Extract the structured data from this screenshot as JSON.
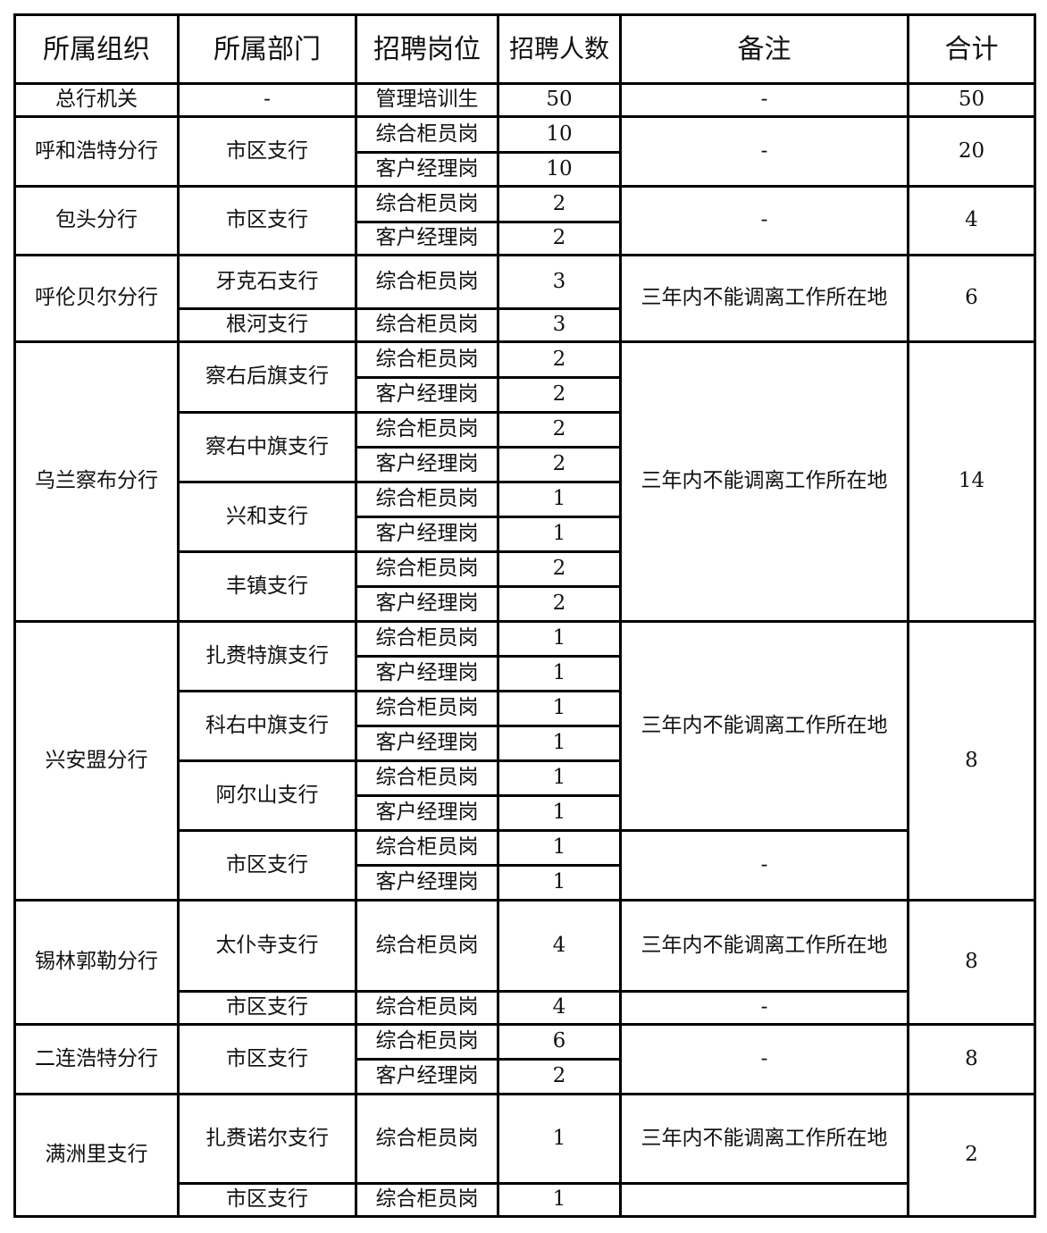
{
  "header": {
    "org": "所属组织",
    "dept": "所属部门",
    "position": "招聘岗位",
    "count": "招聘人数",
    "remark": "备注",
    "total": "合计"
  },
  "orgs": [
    {
      "name": "总行机关",
      "total": "50",
      "depts": [
        {
          "name": "-",
          "positions": [
            {
              "title": "管理培训生",
              "count": "50"
            }
          ]
        }
      ],
      "remarks": [
        {
          "text": "-",
          "span": 1
        }
      ]
    },
    {
      "name": "呼和浩特分行",
      "total": "20",
      "depts": [
        {
          "name": "市区支行",
          "positions": [
            {
              "title": "综合柜员岗",
              "count": "10"
            },
            {
              "title": "客户经理岗",
              "count": "10"
            }
          ]
        }
      ],
      "remarks": [
        {
          "text": "-",
          "span": 2
        }
      ]
    },
    {
      "name": "包头分行",
      "total": "4",
      "depts": [
        {
          "name": "市区支行",
          "positions": [
            {
              "title": "综合柜员岗",
              "count": "2"
            },
            {
              "title": "客户经理岗",
              "count": "2"
            }
          ]
        }
      ],
      "remarks": [
        {
          "text": "-",
          "span": 2
        }
      ]
    },
    {
      "name": "呼伦贝尔分行",
      "total": "6",
      "depts": [
        {
          "name": "牙克石支行",
          "positions": [
            {
              "title": "综合柜员岗",
              "count": "3"
            }
          ]
        },
        {
          "name": "根河支行",
          "positions": [
            {
              "title": "综合柜员岗",
              "count": "3"
            }
          ]
        }
      ],
      "remarks": [
        {
          "text": "三年内不能调离工作所在地",
          "span": 2
        }
      ]
    },
    {
      "name": "乌兰察布分行",
      "total": "14",
      "depts": [
        {
          "name": "察右后旗支行",
          "positions": [
            {
              "title": "综合柜员岗",
              "count": "2"
            },
            {
              "title": "客户经理岗",
              "count": "2"
            }
          ]
        },
        {
          "name": "察右中旗支行",
          "positions": [
            {
              "title": "综合柜员岗",
              "count": "2"
            },
            {
              "title": "客户经理岗",
              "count": "2"
            }
          ]
        },
        {
          "name": "兴和支行",
          "positions": [
            {
              "title": "综合柜员岗",
              "count": "1"
            },
            {
              "title": "客户经理岗",
              "count": "1"
            }
          ]
        },
        {
          "name": "丰镇支行",
          "positions": [
            {
              "title": "综合柜员岗",
              "count": "2"
            },
            {
              "title": "客户经理岗",
              "count": "2"
            }
          ]
        }
      ],
      "remarks": [
        {
          "text": "三年内不能调离工作所在地",
          "span": 8
        }
      ]
    },
    {
      "name": "兴安盟分行",
      "total": "8",
      "depts": [
        {
          "name": "扎赉特旗支行",
          "positions": [
            {
              "title": "综合柜员岗",
              "count": "1"
            },
            {
              "title": "客户经理岗",
              "count": "1"
            }
          ]
        },
        {
          "name": "科右中旗支行",
          "positions": [
            {
              "title": "综合柜员岗",
              "count": "1"
            },
            {
              "title": "客户经理岗",
              "count": "1"
            }
          ]
        },
        {
          "name": "阿尔山支行",
          "positions": [
            {
              "title": "综合柜员岗",
              "count": "1"
            },
            {
              "title": "客户经理岗",
              "count": "1"
            }
          ]
        },
        {
          "name": "市区支行",
          "positions": [
            {
              "title": "综合柜员岗",
              "count": "1"
            },
            {
              "title": "客户经理岗",
              "count": "1"
            }
          ]
        }
      ],
      "remarks": [
        {
          "text": "三年内不能调离工作所在地",
          "span": 6
        },
        {
          "text": "-",
          "span": 2
        }
      ]
    },
    {
      "name": "锡林郭勒分行",
      "total": "8",
      "depts": [
        {
          "name": "太仆寺支行",
          "positions": [
            {
              "title": "综合柜员岗",
              "count": "4"
            }
          ]
        },
        {
          "name": "市区支行",
          "positions": [
            {
              "title": "综合柜员岗",
              "count": "4"
            }
          ]
        }
      ],
      "remarks": [
        {
          "text": "三年内不能调离工作所在地",
          "span": 1
        },
        {
          "text": "-",
          "span": 1
        }
      ]
    },
    {
      "name": "二连浩特分行",
      "total": "8",
      "depts": [
        {
          "name": "市区支行",
          "positions": [
            {
              "title": "综合柜员岗",
              "count": "6"
            },
            {
              "title": "客户经理岗",
              "count": "2"
            }
          ]
        }
      ],
      "remarks": [
        {
          "text": "-",
          "span": 2
        }
      ]
    },
    {
      "name": "满洲里支行",
      "total": "2",
      "depts": [
        {
          "name": "扎赉诺尔支行",
          "positions": [
            {
              "title": "综合柜员岗",
              "count": "1"
            }
          ]
        },
        {
          "name": "市区支行",
          "positions": [
            {
              "title": "综合柜员岗",
              "count": "1"
            }
          ]
        }
      ],
      "remarks": [
        {
          "text": "三年内不能调离工作所在地",
          "span": 1
        },
        {
          "text": "",
          "span": 1
        }
      ]
    }
  ]
}
